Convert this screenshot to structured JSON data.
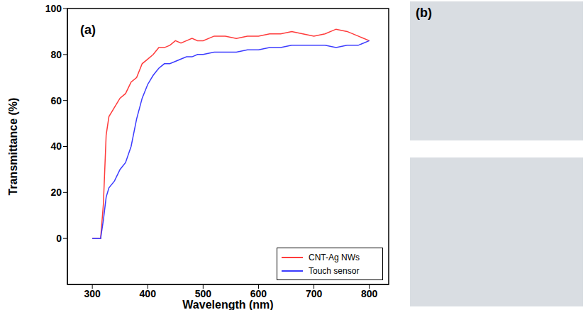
{
  "chart_data": {
    "type": "line",
    "xlabel": "Wavelength (nm)",
    "ylabel": "Transmittance (%)",
    "annotations": [
      "(a)"
    ],
    "x": [
      300,
      315,
      320,
      325,
      330,
      340,
      350,
      360,
      370,
      380,
      390,
      400,
      410,
      420,
      430,
      440,
      450,
      460,
      470,
      480,
      490,
      500,
      520,
      540,
      560,
      580,
      600,
      620,
      640,
      660,
      680,
      700,
      720,
      740,
      760,
      780,
      800
    ],
    "series": [
      {
        "name": "CNT-Ag NWs",
        "color": "#ff3b3b",
        "values": [
          0,
          0,
          15,
          45,
          53,
          57,
          61,
          63,
          68,
          70,
          76,
          78,
          80,
          83,
          83,
          84,
          86,
          85,
          86,
          87,
          86,
          86,
          88,
          88,
          87,
          88,
          88,
          89,
          89,
          90,
          89,
          88,
          89,
          91,
          90,
          88,
          86
        ]
      },
      {
        "name": "Touch sensor",
        "color": "#3b3bff",
        "values": [
          0,
          0,
          8,
          18,
          22,
          25,
          30,
          33,
          40,
          52,
          61,
          67,
          71,
          74,
          76,
          76,
          77,
          78,
          79,
          79,
          80,
          80,
          81,
          81,
          81,
          82,
          82,
          83,
          83,
          84,
          84,
          84,
          84,
          83,
          84,
          84,
          86
        ]
      }
    ],
    "xlim": [
      255,
      835
    ],
    "xticks": [
      300,
      400,
      500,
      600,
      700,
      800
    ],
    "ylim": [
      -20,
      100
    ],
    "yticks": [
      0,
      20,
      40,
      60,
      80,
      100
    ],
    "grid": false,
    "legend": "lower right"
  },
  "photos": {
    "label": "(b)"
  }
}
